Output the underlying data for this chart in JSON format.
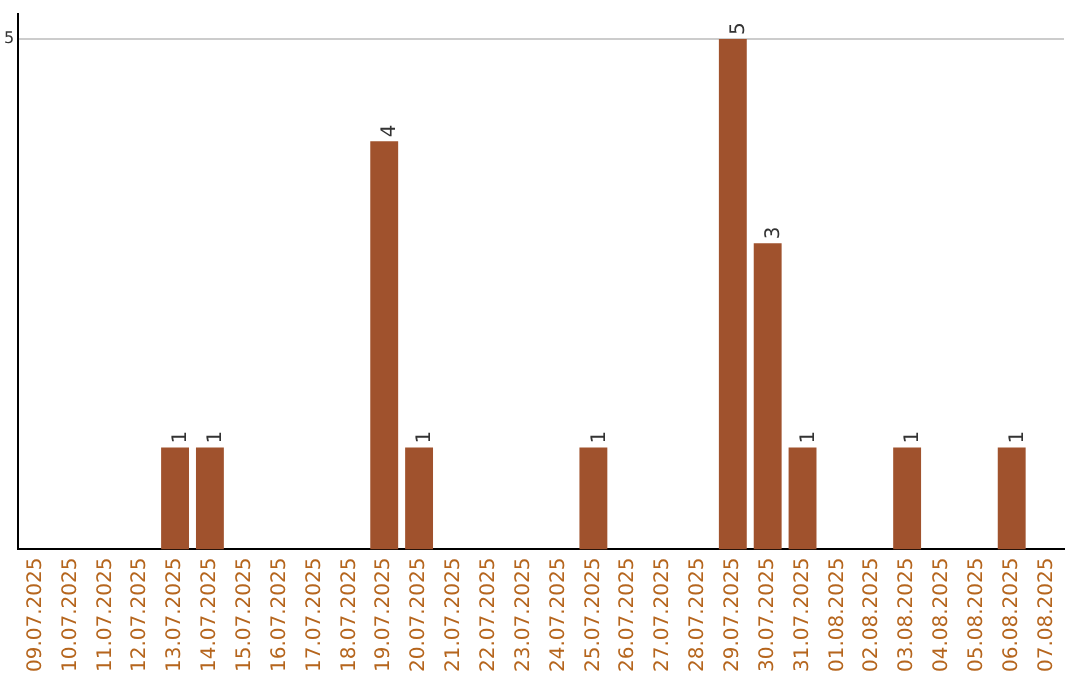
{
  "chart_data": {
    "type": "bar",
    "categories": [
      "09.07.2025",
      "10.07.2025",
      "11.07.2025",
      "12.07.2025",
      "13.07.2025",
      "14.07.2025",
      "15.07.2025",
      "16.07.2025",
      "17.07.2025",
      "18.07.2025",
      "19.07.2025",
      "20.07.2025",
      "21.07.2025",
      "22.07.2025",
      "23.07.2025",
      "24.07.2025",
      "25.07.2025",
      "26.07.2025",
      "27.07.2025",
      "28.07.2025",
      "29.07.2025",
      "30.07.2025",
      "31.07.2025",
      "01.08.2025",
      "02.08.2025",
      "03.08.2025",
      "04.08.2025",
      "05.08.2025",
      "06.08.2025",
      "07.08.2025"
    ],
    "values": [
      0,
      0,
      0,
      0,
      1,
      1,
      0,
      0,
      0,
      0,
      4,
      1,
      0,
      0,
      0,
      0,
      1,
      0,
      0,
      0,
      5,
      3,
      1,
      0,
      0,
      1,
      0,
      0,
      1,
      0
    ],
    "value_labels": [
      null,
      null,
      null,
      null,
      "1",
      "1",
      null,
      null,
      null,
      null,
      "4",
      "1",
      null,
      null,
      null,
      null,
      "1",
      null,
      null,
      null,
      "5",
      "3",
      "1",
      null,
      null,
      "1",
      null,
      null,
      "1",
      null
    ],
    "color": "#a0522d",
    "ylim": [
      0,
      5.25
    ],
    "yticks": [
      5
    ],
    "grid": "y",
    "legend": false
  }
}
